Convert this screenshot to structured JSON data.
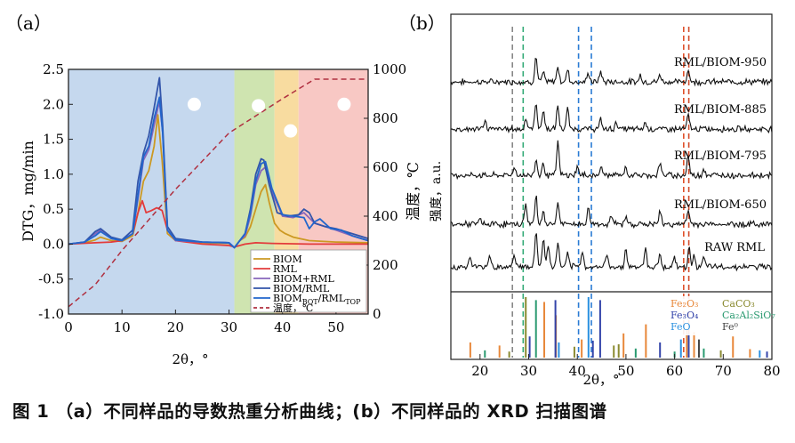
{
  "caption": "图 1 （a）不同样品的导数热重分析曲线；(b）不同样品的 XRD 扫描图谱",
  "panel_a_label": "（a）",
  "panel_b_label": "（b）",
  "colors": {
    "biom": "#cc9922",
    "rml": "#e33b3b",
    "biom_rml": "#8866bb",
    "biom_rml2": "#3355aa",
    "biom_bot": "#2266cc",
    "temp": "#b03040",
    "zone_blue": "#c5d8ee",
    "zone_green": "#cfe4b0",
    "zone_yellow": "#f8dca0",
    "zone_red": "#f8c8c4"
  },
  "chart_data": [
    {
      "type": "line",
      "xlabel": "2θ，°",
      "ylabel": "DTG，mg/min",
      "y2label": "温度，℃",
      "xlim": [
        0,
        56
      ],
      "ylim": [
        -1.0,
        2.5
      ],
      "y2lim": [
        0,
        1000
      ],
      "xticks": [
        "0",
        "10",
        "20",
        "30",
        "40",
        "50"
      ],
      "yticks": [
        "-1.0",
        "-0.5",
        "0.0",
        "0.5",
        "1.0",
        "1.5",
        "2.0",
        "2.5"
      ],
      "y2ticks": [
        "0",
        "200",
        "400",
        "600",
        "800",
        "1000"
      ],
      "zones": [
        {
          "x0": 0,
          "x1": 31,
          "color": "zone_blue"
        },
        {
          "x0": 31,
          "x1": 38.5,
          "color": "zone_green"
        },
        {
          "x0": 38.5,
          "x1": 43,
          "color": "zone_yellow"
        },
        {
          "x0": 43,
          "x1": 56,
          "color": "zone_red"
        }
      ],
      "markers": [
        [
          23.5,
          2.0
        ],
        [
          35.5,
          1.98
        ],
        [
          41.5,
          1.62
        ],
        [
          51.5,
          2.0
        ]
      ],
      "series": [
        {
          "name": "BIOM",
          "color": "biom",
          "x": [
            0,
            3,
            5,
            6,
            8,
            10,
            12,
            13,
            14,
            15,
            16,
            16.7,
            17.5,
            18.5,
            20,
            25,
            30,
            31,
            32,
            33,
            34,
            35,
            36,
            36.8,
            37.5,
            38.5,
            39.5,
            40.5,
            42,
            45,
            50,
            56
          ],
          "y": [
            0,
            0.02,
            0.06,
            0.1,
            0.05,
            0.04,
            0.12,
            0.45,
            0.9,
            1.05,
            1.4,
            1.85,
            1.2,
            0.15,
            0.05,
            0.02,
            0.01,
            -0.05,
            0.05,
            0.1,
            0.25,
            0.5,
            0.75,
            0.85,
            0.6,
            0.3,
            0.2,
            0.15,
            0.1,
            0.05,
            0.03,
            0.02
          ]
        },
        {
          "name": "RML",
          "color": "rml",
          "x": [
            0,
            5,
            8,
            10,
            12,
            13,
            13.8,
            14.5,
            15.5,
            16.5,
            17.5,
            18.5,
            20,
            25,
            30,
            31,
            32,
            33,
            35,
            38,
            45,
            56
          ],
          "y": [
            0,
            0.02,
            0.03,
            0.05,
            0.15,
            0.45,
            0.62,
            0.45,
            0.48,
            0.52,
            0.48,
            0.2,
            0.05,
            0.0,
            -0.02,
            -0.04,
            -0.02,
            0.0,
            0.02,
            0.01,
            0.0,
            0.0
          ]
        },
        {
          "name": "BIOM+RML",
          "color": "biom_rml",
          "x": [
            0,
            3,
            5,
            6,
            8,
            10,
            12,
            13,
            14,
            15,
            16,
            17,
            17.6,
            18.5,
            20,
            25,
            30,
            31,
            32,
            33,
            34,
            35,
            36,
            36.8,
            38,
            40,
            42,
            44,
            46,
            48,
            50,
            53,
            56
          ],
          "y": [
            0,
            0.03,
            0.15,
            0.2,
            0.08,
            0.05,
            0.15,
            0.65,
            1.2,
            1.35,
            1.7,
            2.05,
            1.6,
            0.2,
            0.05,
            0.03,
            0.02,
            -0.05,
            0.05,
            0.12,
            0.4,
            0.85,
            1.05,
            1.1,
            0.75,
            0.4,
            0.38,
            0.45,
            0.3,
            0.25,
            0.2,
            0.12,
            0.05
          ]
        },
        {
          "name": "BIOM/RML",
          "color": "biom_rml2",
          "x": [
            0,
            3,
            5,
            6,
            8,
            10,
            12,
            13,
            14,
            15,
            16,
            17,
            17.6,
            18.5,
            20,
            25,
            30,
            31,
            32,
            33,
            34,
            35,
            36,
            36.5,
            37.5,
            39,
            41,
            43,
            44,
            45,
            46,
            48,
            50,
            53,
            56
          ],
          "y": [
            0,
            0.03,
            0.18,
            0.22,
            0.1,
            0.06,
            0.2,
            0.9,
            1.3,
            1.55,
            1.95,
            2.38,
            1.7,
            0.25,
            0.08,
            0.03,
            0.02,
            -0.05,
            0.05,
            0.15,
            0.5,
            1.0,
            1.22,
            1.2,
            0.85,
            0.45,
            0.4,
            0.42,
            0.5,
            0.45,
            0.3,
            0.25,
            0.22,
            0.15,
            0.08
          ]
        },
        {
          "name": "BIOM_BOT/RML_TOP",
          "color": "biom_bot",
          "x": [
            0,
            3,
            5,
            6,
            8,
            10,
            12,
            13,
            14,
            15,
            16,
            17,
            17.6,
            18.5,
            20,
            25,
            30,
            31,
            32,
            33,
            34,
            35,
            36,
            36.8,
            38,
            40,
            42,
            44,
            45,
            46,
            47,
            49,
            51,
            53,
            56
          ],
          "y": [
            0,
            0.03,
            0.12,
            0.18,
            0.08,
            0.05,
            0.15,
            0.7,
            1.25,
            1.4,
            1.8,
            2.1,
            1.6,
            0.2,
            0.06,
            0.03,
            0.02,
            -0.05,
            0.05,
            0.15,
            0.45,
            0.9,
            1.15,
            1.18,
            0.8,
            0.42,
            0.4,
            0.38,
            0.22,
            0.32,
            0.36,
            0.22,
            0.2,
            0.12,
            0.05
          ]
        },
        {
          "name": "温度，℃",
          "color": "temp",
          "axis": "y2",
          "x": [
            0,
            5,
            10,
            20,
            30,
            40,
            46,
            56
          ],
          "y": [
            30,
            120,
            260,
            510,
            740,
            880,
            960,
            960
          ]
        }
      ],
      "legend": [
        "BIOM",
        "RML",
        "BIOM+RML",
        "BIOM/RML",
        "BIOM_BOT/RML_TOP",
        "温度，℃"
      ]
    },
    {
      "type": "line",
      "xlabel": "2θ，°",
      "ylabel": "强度，a.u.",
      "xlim": [
        14,
        80
      ],
      "xticks": [
        "20",
        "30",
        "40",
        "50",
        "60",
        "70",
        "80"
      ],
      "series": [
        {
          "name": "RML/BIOM-950"
        },
        {
          "name": "RML/BIOM-885"
        },
        {
          "name": "RML/BIOM-795"
        },
        {
          "name": "RML/BIOM-650"
        },
        {
          "name": "RAW RML"
        }
      ],
      "reference_lines": [
        {
          "x": 29.4,
          "color": "#888888"
        },
        {
          "x": 31.5,
          "color": "#33aa77"
        },
        {
          "x": 42.3,
          "color": "#2a7bd4"
        },
        {
          "x": 44.8,
          "color": "#2a7bd4"
        },
        {
          "x": 62.8,
          "color": "#e0502a"
        },
        {
          "x": 63.8,
          "color": "#d04a2a"
        }
      ],
      "phases": [
        {
          "label": "Fe₂O₃",
          "color": "#e8883a"
        },
        {
          "label": "CaCO₃",
          "color": "#8a8a30"
        },
        {
          "label": "Fe₃O₄",
          "color": "#3344aa"
        },
        {
          "label": "Ca₂Al₂SiO₇",
          "color": "#2a9a70"
        },
        {
          "label": "FeO",
          "color": "#2a90e0"
        },
        {
          "label": "Fe⁰",
          "color": "#444444"
        }
      ],
      "reference_sticks": [
        {
          "x": 18,
          "h": 0.25,
          "c": "#e8883a"
        },
        {
          "x": 21,
          "h": 0.12,
          "c": "#2a9a70"
        },
        {
          "x": 24,
          "h": 0.2,
          "c": "#e8883a"
        },
        {
          "x": 26,
          "h": 0.1,
          "c": "#8a8a30"
        },
        {
          "x": 29.4,
          "h": 1.0,
          "c": "#8a8a30"
        },
        {
          "x": 30.2,
          "h": 0.35,
          "c": "#3344aa"
        },
        {
          "x": 31.5,
          "h": 0.95,
          "c": "#2a9a70"
        },
        {
          "x": 33.2,
          "h": 0.92,
          "c": "#e8883a"
        },
        {
          "x": 35.6,
          "h": 0.7,
          "c": "#e8883a"
        },
        {
          "x": 35.5,
          "h": 0.95,
          "c": "#3344aa"
        },
        {
          "x": 36.2,
          "h": 0.25,
          "c": "#2a90e0"
        },
        {
          "x": 39.4,
          "h": 0.18,
          "c": "#8a8a30"
        },
        {
          "x": 40.9,
          "h": 0.3,
          "c": "#e8883a"
        },
        {
          "x": 42.3,
          "h": 1.0,
          "c": "#2a90e0"
        },
        {
          "x": 43.2,
          "h": 0.28,
          "c": "#3344aa"
        },
        {
          "x": 44.7,
          "h": 0.95,
          "c": "#3344aa"
        },
        {
          "x": 47.5,
          "h": 0.2,
          "c": "#8a8a30"
        },
        {
          "x": 48.5,
          "h": 0.22,
          "c": "#8a8a30"
        },
        {
          "x": 49.5,
          "h": 0.4,
          "c": "#e8883a"
        },
        {
          "x": 52,
          "h": 0.15,
          "c": "#2a9a70"
        },
        {
          "x": 54.1,
          "h": 0.55,
          "c": "#e8883a"
        },
        {
          "x": 57,
          "h": 0.25,
          "c": "#3344aa"
        },
        {
          "x": 60,
          "h": 0.1,
          "c": "#2a9a70"
        },
        {
          "x": 61.3,
          "h": 0.3,
          "c": "#2a90e0"
        },
        {
          "x": 62.5,
          "h": 0.48,
          "c": "#e8883a"
        },
        {
          "x": 62.9,
          "h": 0.4,
          "c": "#3344aa"
        },
        {
          "x": 64,
          "h": 0.42,
          "c": "#e8883a"
        },
        {
          "x": 65,
          "h": 0.3,
          "c": "#444444"
        },
        {
          "x": 66,
          "h": 0.15,
          "c": "#2a9a70"
        },
        {
          "x": 69.5,
          "h": 0.12,
          "c": "#8a8a30"
        },
        {
          "x": 72,
          "h": 0.35,
          "c": "#e8883a"
        },
        {
          "x": 75.5,
          "h": 0.14,
          "c": "#e8883a"
        },
        {
          "x": 77.5,
          "h": 0.12,
          "c": "#2a90e0"
        },
        {
          "x": 79,
          "h": 0.1,
          "c": "#3344aa"
        }
      ]
    }
  ]
}
